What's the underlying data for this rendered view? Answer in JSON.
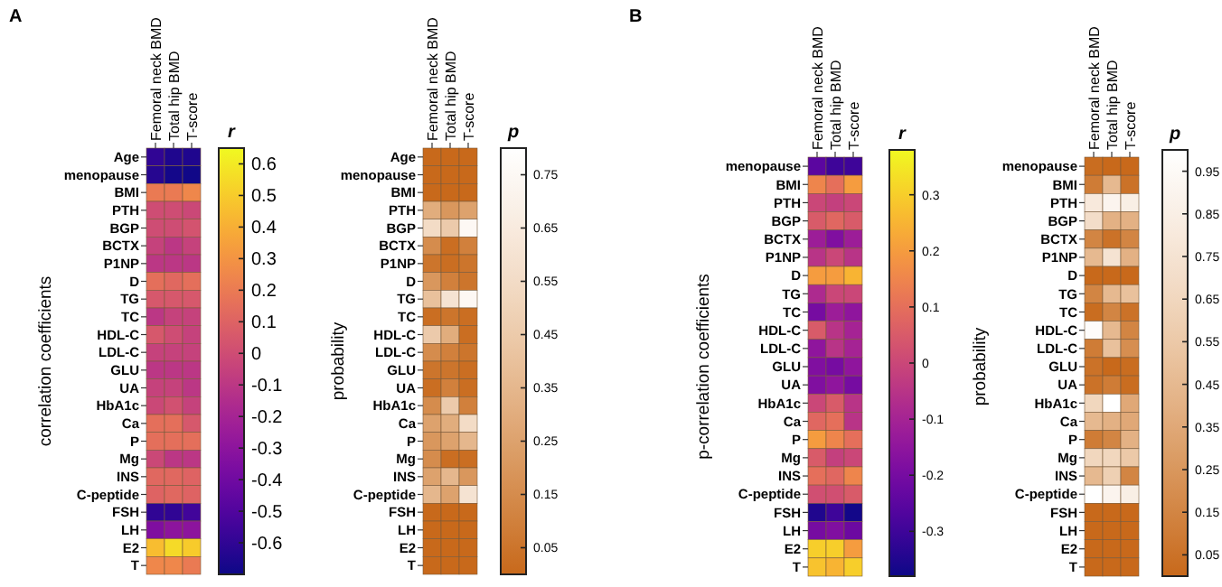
{
  "chart_data": [
    {
      "type": "heatmap",
      "title": "A",
      "ylabel": "correlation coefficients",
      "clabel": "r",
      "categories": [
        "Femoral neck BMD",
        "Total hip BMD",
        "T-score"
      ],
      "y_categories": [
        "Age",
        "menopause",
        "BMI",
        "PTH",
        "BGP",
        "BCTX",
        "P1NP",
        "D",
        "TG",
        "TC",
        "HDL-C",
        "LDL-C",
        "GLU",
        "UA",
        "HbA1c",
        "Ca",
        "P",
        "Mg",
        "INS",
        "C-peptide",
        "FSH",
        "LH",
        "E2",
        "T"
      ],
      "cells": [
        [
          -0.6,
          -0.65,
          -0.65
        ],
        [
          -0.63,
          -0.68,
          -0.69
        ],
        [
          0.2,
          0.2,
          0.25
        ],
        [
          0,
          0,
          -0.02
        ],
        [
          0,
          0,
          0.03
        ],
        [
          -0.05,
          -0.1,
          -0.05
        ],
        [
          -0.1,
          -0.1,
          -0.1
        ],
        [
          0.15,
          0.12,
          0.15
        ],
        [
          0.05,
          0.05,
          0.05
        ],
        [
          -0.1,
          -0.05,
          -0.05
        ],
        [
          0.05,
          0,
          -0.05
        ],
        [
          -0.05,
          -0.05,
          -0.05
        ],
        [
          -0.1,
          -0.1,
          -0.1
        ],
        [
          -0.05,
          -0.05,
          -0.1
        ],
        [
          -0.02,
          0.02,
          -0.05
        ],
        [
          0.15,
          0.15,
          0.05
        ],
        [
          0.15,
          0.15,
          0.15
        ],
        [
          -0.02,
          -0.1,
          -0.1
        ],
        [
          0.12,
          0.12,
          0.1
        ],
        [
          0.1,
          0.12,
          0.1
        ],
        [
          -0.6,
          -0.6,
          -0.55
        ],
        [
          -0.35,
          -0.3,
          -0.3
        ],
        [
          0.45,
          0.55,
          0.5
        ],
        [
          0.25,
          0.25,
          0.2
        ]
      ],
      "colors": [
        "#0d0887",
        "#5c01a6",
        "#9c179e",
        "#cc4778",
        "#ed7953",
        "#fdb42f",
        "#f0f921"
      ],
      "clim": [
        -0.7,
        0.65
      ],
      "cticks": [
        0.6,
        0.5,
        0.4,
        0.3,
        0.2,
        0.1,
        0,
        -0.1,
        -0.2,
        -0.3,
        -0.4,
        -0.5,
        -0.6
      ]
    },
    {
      "type": "heatmap",
      "ylabel": "probability",
      "clabel": "p",
      "categories": [
        "Femoral neck BMD",
        "Total hip BMD",
        "T-score"
      ],
      "y_categories": [
        "Age",
        "menopause",
        "BMI",
        "PTH",
        "BGP",
        "BCTX",
        "P1NP",
        "D",
        "TG",
        "TC",
        "HDL-C",
        "LDL-C",
        "GLU",
        "UA",
        "HbA1c",
        "Ca",
        "P",
        "Mg",
        "INS",
        "C-peptide",
        "FSH",
        "LH",
        "E2",
        "T"
      ],
      "cells": [
        [
          0,
          0,
          0
        ],
        [
          0,
          0,
          0
        ],
        [
          0,
          0,
          0
        ],
        [
          0.3,
          0.2,
          0.25
        ],
        [
          0.55,
          0.45,
          0.75
        ],
        [
          0.15,
          0.02,
          0.1
        ],
        [
          0.05,
          0.02,
          0.05
        ],
        [
          0.2,
          0.1,
          0.05
        ],
        [
          0.4,
          0.6,
          0.75
        ],
        [
          0.02,
          0.05,
          0.02
        ],
        [
          0.45,
          0.3,
          0.02
        ],
        [
          0.15,
          0.1,
          0.05
        ],
        [
          0.05,
          0.05,
          0.02
        ],
        [
          0.02,
          0.1,
          0.02
        ],
        [
          0.15,
          0.45,
          0.1
        ],
        [
          0.25,
          0.3,
          0.55
        ],
        [
          0.2,
          0.25,
          0.35
        ],
        [
          0.15,
          0.02,
          0.02
        ],
        [
          0.25,
          0.35,
          0.2
        ],
        [
          0.35,
          0.25,
          0.6
        ],
        [
          0,
          0,
          0
        ],
        [
          0,
          0,
          0
        ],
        [
          0,
          0,
          0
        ],
        [
          0,
          0,
          0
        ]
      ],
      "colors": [
        "#c8691b",
        "#dfa774",
        "#f3dcc6",
        "#ffffff"
      ],
      "clim": [
        0,
        0.8
      ],
      "cticks": [
        0.75,
        0.65,
        0.55,
        0.45,
        0.35,
        0.25,
        0.15,
        0.05
      ]
    },
    {
      "type": "heatmap",
      "title": "B",
      "ylabel": "p-correlation coefficients",
      "clabel": "r",
      "categories": [
        "Femoral neck BMD",
        "Total hip BMD",
        "T-score"
      ],
      "y_categories": [
        "menopause",
        "BMI",
        "PTH",
        "BGP",
        "BCTX",
        "P1NP",
        "D",
        "TG",
        "TC",
        "HDL-C",
        "LDL-C",
        "GLU",
        "UA",
        "HbA1c",
        "Ca",
        "P",
        "Mg",
        "INS",
        "C-peptide",
        "FSH",
        "LH",
        "E2",
        "T"
      ],
      "cells": [
        [
          -0.25,
          -0.3,
          -0.3
        ],
        [
          0.15,
          0.1,
          0.2
        ],
        [
          0,
          -0.02,
          0
        ],
        [
          0.05,
          0.08,
          0.05
        ],
        [
          -0.12,
          -0.18,
          -0.12
        ],
        [
          -0.05,
          0,
          -0.05
        ],
        [
          0.2,
          0.2,
          0.25
        ],
        [
          -0.08,
          0,
          0
        ],
        [
          -0.2,
          -0.12,
          -0.15
        ],
        [
          0.05,
          -0.05,
          -0.1
        ],
        [
          -0.15,
          -0.05,
          -0.1
        ],
        [
          -0.18,
          -0.2,
          -0.15
        ],
        [
          -0.18,
          -0.15,
          -0.2
        ],
        [
          0,
          0.05,
          -0.05
        ],
        [
          0.08,
          0.1,
          -0.05
        ],
        [
          0.2,
          0.15,
          0.1
        ],
        [
          0.05,
          -0.02,
          0
        ],
        [
          0.1,
          0.08,
          0.15
        ],
        [
          0.02,
          0.02,
          0.05
        ],
        [
          -0.35,
          -0.3,
          -0.37
        ],
        [
          -0.2,
          -0.18,
          -0.22
        ],
        [
          0.3,
          0.3,
          0.2
        ],
        [
          0.28,
          0.25,
          0.3
        ]
      ],
      "colors": [
        "#0d0887",
        "#5c01a6",
        "#9c179e",
        "#cc4778",
        "#ed7953",
        "#fdb42f",
        "#f0f921"
      ],
      "clim": [
        -0.38,
        0.38
      ],
      "cticks": [
        0.3,
        0.2,
        0.1,
        0,
        -0.1,
        -0.2,
        -0.3
      ]
    },
    {
      "type": "heatmap",
      "ylabel": "probability",
      "clabel": "p",
      "categories": [
        "Femoral neck BMD",
        "Total hip BMD",
        "T-score"
      ],
      "y_categories": [
        "menopause",
        "BMI",
        "PTH",
        "BGP",
        "BCTX",
        "P1NP",
        "D",
        "TG",
        "TC",
        "HDL-C",
        "LDL-C",
        "GLU",
        "UA",
        "HbA1c",
        "Ca",
        "P",
        "Mg",
        "INS",
        "C-peptide",
        "FSH",
        "LH",
        "E2",
        "T"
      ],
      "cells": [
        [
          0.02,
          0,
          0
        ],
        [
          0.1,
          0.45,
          0.05
        ],
        [
          0.8,
          0.9,
          0.85
        ],
        [
          0.7,
          0.4,
          0.4
        ],
        [
          0.15,
          0.05,
          0.15
        ],
        [
          0.45,
          0.75,
          0.4
        ],
        [
          0,
          0,
          0
        ],
        [
          0.15,
          0.45,
          0.5
        ],
        [
          0.02,
          0.15,
          0.05
        ],
        [
          0.97,
          0.45,
          0.15
        ],
        [
          0.1,
          0.5,
          0.2
        ],
        [
          0.05,
          0,
          0.02
        ],
        [
          0.05,
          0.1,
          0.02
        ],
        [
          0.65,
          1.0,
          0.35
        ],
        [
          0.45,
          0.4,
          0.35
        ],
        [
          0.1,
          0.15,
          0.4
        ],
        [
          0.65,
          0.65,
          0.55
        ],
        [
          0.45,
          0.6,
          0.15
        ],
        [
          1.0,
          0.9,
          0.85
        ],
        [
          0,
          0,
          0
        ],
        [
          0,
          0,
          0
        ],
        [
          0,
          0,
          0
        ],
        [
          0,
          0,
          0
        ]
      ],
      "colors": [
        "#c8691b",
        "#dfa774",
        "#f3dcc6",
        "#ffffff"
      ],
      "clim": [
        0,
        1.0
      ],
      "cticks": [
        0.95,
        0.85,
        0.75,
        0.65,
        0.55,
        0.45,
        0.35,
        0.25,
        0.15,
        0.05
      ]
    }
  ]
}
